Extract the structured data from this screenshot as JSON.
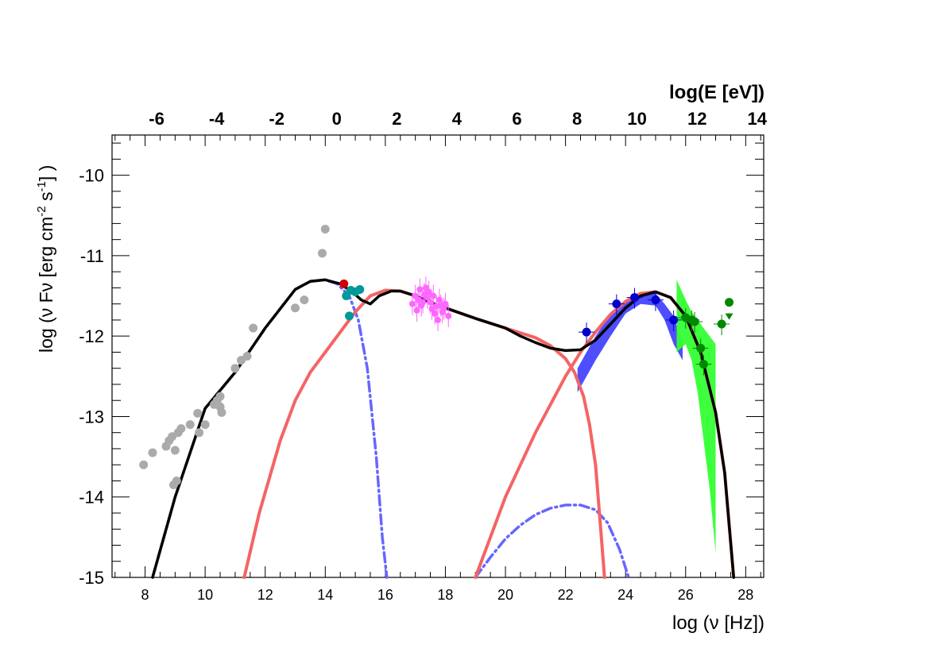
{
  "chart_data": {
    "type": "scatter",
    "title": "",
    "xlabel": "log (ν [Hz])",
    "ylabel_parts": [
      "log (ν Fν [erg cm",
      "-2",
      " s",
      "-1",
      "] )"
    ],
    "top_axis_label": "log(E [eV])",
    "xlim": [
      6.9,
      28.6
    ],
    "ylim": [
      -15,
      -9.5
    ],
    "x_ticks": [
      8,
      10,
      12,
      14,
      16,
      18,
      20,
      22,
      24,
      26,
      28
    ],
    "y_ticks": [
      -10,
      -11,
      -12,
      -13,
      -14,
      -15
    ],
    "top_ticks": [
      -6,
      -4,
      -2,
      0,
      2,
      4,
      6,
      8,
      10,
      12,
      14
    ],
    "top_axis_offset": 14.383,
    "colors": {
      "synchrotron_total": "#000000",
      "component_dashdot": "#6666ff",
      "ssc_red": "#f46464",
      "archival": "#aaaaaa",
      "optical_uv": "#009999",
      "xray": "#ff66ff",
      "fermi": "#0000cc",
      "fermi_band": "#4444ff",
      "vhe": "#008800",
      "vhe_band": "#33ff33",
      "red_point": "#cc0000"
    },
    "series": [
      {
        "kind": "curve",
        "style": "dashdot",
        "color": "#6666ff",
        "x": [
          8.25,
          9.0,
          10.0,
          11.0,
          12.0,
          13.0,
          13.5,
          14.0,
          14.4,
          14.8,
          15.1,
          15.4,
          15.7,
          15.9,
          16.05
        ],
        "y": [
          -15.0,
          -14.0,
          -12.9,
          -12.45,
          -11.9,
          -11.42,
          -11.32,
          -11.3,
          -11.35,
          -11.5,
          -11.8,
          -12.4,
          -13.5,
          -14.5,
          -15.0
        ]
      },
      {
        "kind": "curve",
        "style": "dashdot",
        "color": "#6666ff",
        "x": [
          19.0,
          19.5,
          20.0,
          20.5,
          21.0,
          21.5,
          22.0,
          22.5,
          23.0,
          23.4,
          23.8,
          24.1
        ],
        "y": [
          -15.0,
          -14.75,
          -14.52,
          -14.35,
          -14.22,
          -14.14,
          -14.1,
          -14.1,
          -14.16,
          -14.32,
          -14.65,
          -15.0
        ]
      },
      {
        "kind": "curve",
        "style": "solid",
        "color": "#f46464",
        "x": [
          11.3,
          11.8,
          12.5,
          13.0,
          13.5,
          14.0,
          14.5,
          15.0,
          15.5,
          16.0,
          16.5,
          17.0,
          17.5,
          18.0,
          19.0,
          20.0,
          21.0,
          21.5,
          22.0,
          22.3,
          22.6,
          22.8,
          23.0,
          23.15,
          23.3
        ],
        "y": [
          -15.0,
          -14.2,
          -13.3,
          -12.8,
          -12.45,
          -12.2,
          -11.95,
          -11.7,
          -11.5,
          -11.43,
          -11.44,
          -11.5,
          -11.58,
          -11.65,
          -11.78,
          -11.9,
          -12.02,
          -12.12,
          -12.28,
          -12.45,
          -12.75,
          -13.1,
          -13.6,
          -14.3,
          -15.0
        ]
      },
      {
        "kind": "curve",
        "style": "solid",
        "color": "#f46464",
        "x": [
          19.0,
          19.5,
          20.0,
          20.5,
          21.0,
          21.5,
          22.0,
          22.5,
          23.0,
          23.5,
          24.0,
          24.5,
          25.0,
          25.5,
          26.0,
          26.5,
          27.0,
          27.3,
          27.6
        ],
        "y": [
          -15.0,
          -14.5,
          -14.0,
          -13.6,
          -13.2,
          -12.85,
          -12.5,
          -12.2,
          -11.95,
          -11.73,
          -11.57,
          -11.47,
          -11.45,
          -11.52,
          -11.75,
          -12.2,
          -12.95,
          -13.7,
          -15.0
        ]
      },
      {
        "kind": "curve",
        "style": "solid-bold",
        "color": "#000000",
        "x": [
          8.25,
          9.0,
          10.0,
          11.0,
          12.0,
          13.0,
          13.5,
          14.0,
          14.5,
          14.9,
          15.2,
          15.5,
          15.8,
          16.2,
          16.5,
          17.0,
          17.5,
          18.0,
          19.0,
          20.0,
          20.5,
          21.0,
          21.5,
          22.0,
          22.5,
          23.0,
          23.5,
          24.0,
          24.5,
          25.0,
          25.5,
          26.0,
          26.5,
          27.0,
          27.3,
          27.6
        ],
        "y": [
          -15.0,
          -14.0,
          -12.9,
          -12.45,
          -11.9,
          -11.42,
          -11.32,
          -11.3,
          -11.35,
          -11.45,
          -11.55,
          -11.6,
          -11.5,
          -11.44,
          -11.44,
          -11.5,
          -11.58,
          -11.65,
          -11.78,
          -11.9,
          -12.0,
          -12.08,
          -12.15,
          -12.18,
          -12.17,
          -12.05,
          -11.85,
          -11.65,
          -11.5,
          -11.45,
          -11.52,
          -11.75,
          -12.2,
          -12.95,
          -13.7,
          -15.0
        ]
      }
    ],
    "bands": [
      {
        "color": "#4444ff",
        "x": [
          22.4,
          23.0,
          23.5,
          24.0,
          24.5,
          25.0,
          25.3,
          25.6,
          25.9
        ],
        "y_upper": [
          -12.4,
          -12.0,
          -11.72,
          -11.55,
          -11.45,
          -11.47,
          -11.6,
          -11.75,
          -12.1
        ],
        "y_lower": [
          -12.7,
          -12.3,
          -12.0,
          -11.72,
          -11.6,
          -11.62,
          -11.8,
          -12.1,
          -12.3
        ]
      },
      {
        "color": "#33ff33",
        "x": [
          25.7,
          26.0,
          26.2,
          26.4,
          26.6,
          26.8,
          27.0
        ],
        "y_upper": [
          -11.3,
          -11.55,
          -11.7,
          -11.8,
          -11.9,
          -12.0,
          -12.1
        ],
        "y_lower": [
          -12.2,
          -12.1,
          -12.3,
          -12.7,
          -13.3,
          -13.9,
          -14.7
        ]
      }
    ],
    "points": [
      {
        "name": "archival",
        "color": "#aaaaaa",
        "x": [
          7.95,
          8.25,
          8.7,
          8.8,
          8.9,
          9.0,
          9.1,
          9.2,
          8.95,
          9.05,
          9.5,
          9.75,
          9.8,
          10.0,
          10.3,
          10.4,
          10.5,
          10.55,
          10.5,
          11.0,
          11.2,
          11.4,
          11.6,
          13.0,
          13.3,
          13.9,
          14.0
        ],
        "y": [
          -13.6,
          -13.45,
          -13.37,
          -13.3,
          -13.25,
          -13.42,
          -13.2,
          -13.15,
          -13.85,
          -13.8,
          -13.1,
          -12.96,
          -13.2,
          -13.1,
          -12.85,
          -12.8,
          -12.75,
          -12.95,
          -12.88,
          -12.4,
          -12.3,
          -12.25,
          -11.9,
          -11.65,
          -11.55,
          -10.97,
          -10.67
        ]
      },
      {
        "name": "red",
        "color": "#cc0000",
        "x": [
          14.62
        ],
        "y": [
          -11.35
        ]
      },
      {
        "name": "optical-uv",
        "color": "#009999",
        "x": [
          14.7,
          14.85,
          15.0,
          15.15,
          14.8
        ],
        "y": [
          -11.5,
          -11.43,
          -11.45,
          -11.42,
          -11.75
        ]
      },
      {
        "name": "xray",
        "color": "#ff66ff",
        "x": [
          16.9,
          17.0,
          17.1,
          17.2,
          17.3,
          17.35,
          17.4,
          17.5,
          17.55,
          17.6,
          17.7,
          17.8,
          17.9,
          18.0,
          18.1,
          17.05,
          17.25,
          17.45,
          17.65,
          17.85,
          17.15,
          17.75,
          17.95
        ],
        "y": [
          -11.6,
          -11.5,
          -11.55,
          -11.62,
          -11.48,
          -11.4,
          -11.52,
          -11.58,
          -11.66,
          -11.5,
          -11.63,
          -11.55,
          -11.7,
          -11.6,
          -11.75,
          -11.68,
          -11.58,
          -11.45,
          -11.72,
          -11.62,
          -11.42,
          -11.8,
          -11.66
        ]
      },
      {
        "name": "fermi",
        "color": "#0000cc",
        "x": [
          22.7,
          23.7,
          24.3,
          25.0,
          25.6
        ],
        "y": [
          -11.95,
          -11.6,
          -11.52,
          -11.55,
          -11.8
        ]
      },
      {
        "name": "vhe",
        "color": "#008800",
        "x": [
          26.0,
          26.2,
          26.3,
          26.5,
          26.6,
          27.2
        ],
        "y": [
          -11.77,
          -11.8,
          -11.82,
          -12.15,
          -12.35,
          -11.85
        ]
      },
      {
        "name": "vhe-ul",
        "color": "#008800",
        "x": [
          27.45
        ],
        "y": [
          -11.58
        ]
      }
    ]
  }
}
